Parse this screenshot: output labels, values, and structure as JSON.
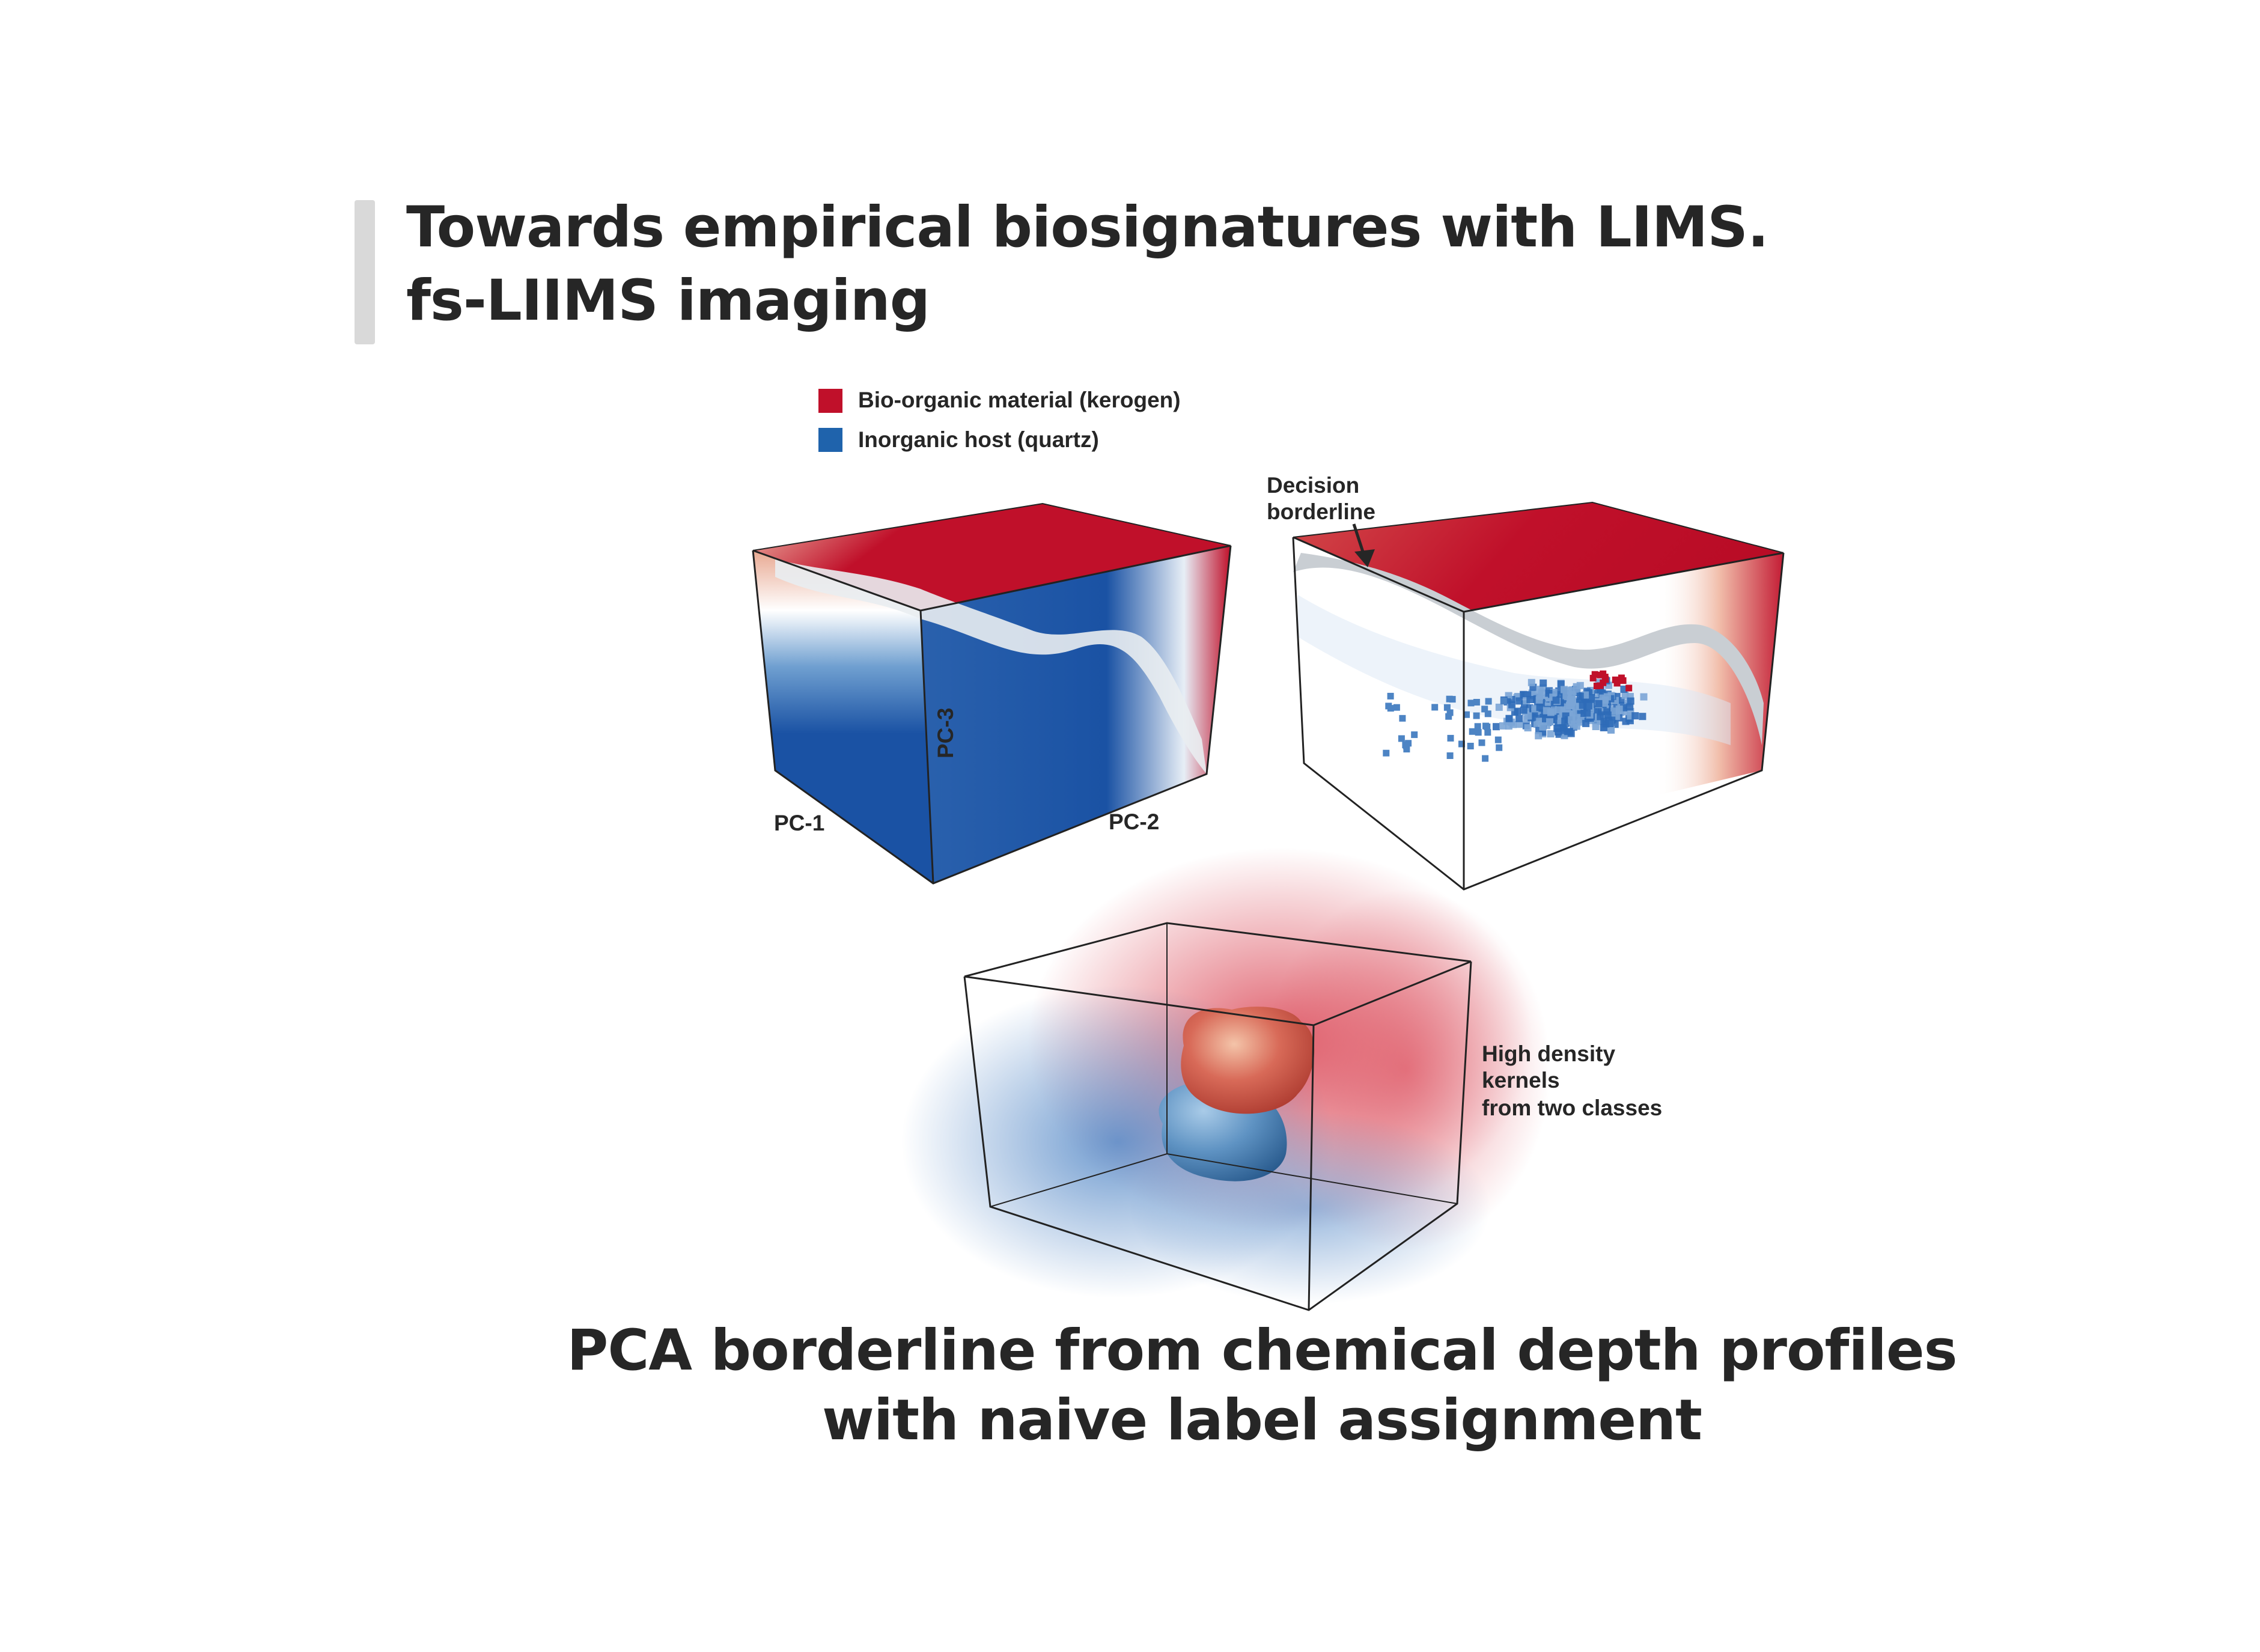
{
  "slide": {
    "title_line1": "Towards empirical biosignatures with LIMS.",
    "title_line2": "fs-LIIMS imaging",
    "caption_line1": "PCA borderline from chemical depth profiles",
    "caption_line2": "with naive label assignment"
  },
  "legend": {
    "items": [
      {
        "label": "Bio-organic material (kerogen)",
        "color": "#c0102a"
      },
      {
        "label": "Inorganic host (quartz)",
        "color": "#1f63ac"
      }
    ]
  },
  "panels": {
    "left": {
      "axis_x": "PC-1",
      "axis_y": "PC-2",
      "axis_z": "PC-3"
    },
    "right": {
      "annotation_line1": "Decision",
      "annotation_line2": "borderline"
    },
    "bottom": {
      "annotation_line1": "High density",
      "annotation_line2": "kernels",
      "annotation_line3": "from two classes"
    }
  },
  "colors": {
    "organic": "#c0102a",
    "inorganic": "#1a52a4",
    "border": "#d2d6da",
    "text": "#262626",
    "accent_bar": "#d9d9d9"
  }
}
